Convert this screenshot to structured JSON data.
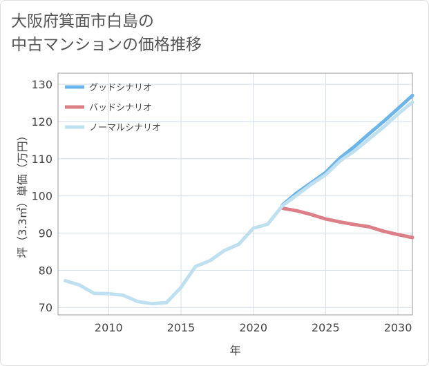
{
  "title_lines": [
    "大阪府箕面市白島の",
    "中古マンションの価格推移"
  ],
  "chart_data": {
    "type": "line",
    "xlabel": "年",
    "ylabel": "坪（3.3㎡）単価（万円）",
    "xlim": [
      2006.5,
      2031
    ],
    "ylim": [
      68,
      133
    ],
    "x_ticks": [
      2010,
      2015,
      2020,
      2025,
      2030
    ],
    "y_ticks": [
      70,
      80,
      90,
      100,
      110,
      120,
      130
    ],
    "grid": true,
    "legend_position": "top-left",
    "series": [
      {
        "name": "グッドシナリオ",
        "color": "#6bb5ea",
        "x": [
          2022,
          2023,
          2024,
          2025,
          2026,
          2027,
          2028,
          2029,
          2030,
          2031
        ],
        "y": [
          97.5,
          100.8,
          103.5,
          106.3,
          110.2,
          113.3,
          116.7,
          120.0,
          123.5,
          127.0
        ]
      },
      {
        "name": "バッドシナリオ",
        "color": "#dc7f86",
        "x": [
          2022,
          2023,
          2024,
          2025,
          2026,
          2027,
          2028,
          2029,
          2030,
          2031
        ],
        "y": [
          96.7,
          96.0,
          95.0,
          93.8,
          93.0,
          92.3,
          91.7,
          90.5,
          89.6,
          88.8
        ]
      },
      {
        "name": "ノーマルシナリオ",
        "color": "#bfe0f0",
        "x": [
          2007,
          2008,
          2009,
          2010,
          2011,
          2012,
          2013,
          2014,
          2015,
          2016,
          2017,
          2018,
          2019,
          2020,
          2021,
          2022,
          2023,
          2024,
          2025,
          2026,
          2027,
          2028,
          2029,
          2030,
          2031
        ],
        "y": [
          77.2,
          76.0,
          73.8,
          73.7,
          73.3,
          71.6,
          71.0,
          71.3,
          75.4,
          81.0,
          82.6,
          85.3,
          87.0,
          91.3,
          92.4,
          97.3,
          100.2,
          103.1,
          105.7,
          109.4,
          112.1,
          115.3,
          118.5,
          122.0,
          125.2
        ]
      }
    ]
  }
}
